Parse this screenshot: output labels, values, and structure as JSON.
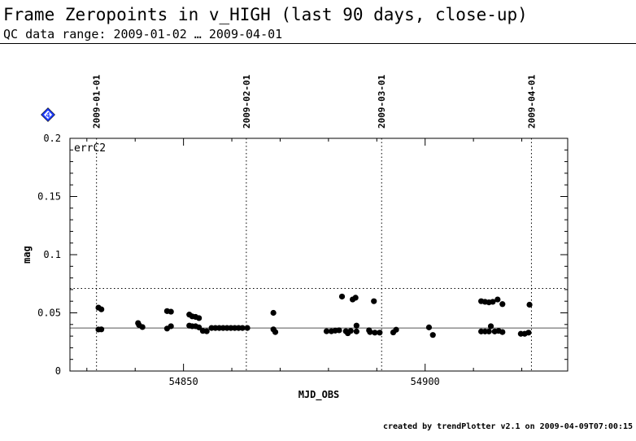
{
  "title": "Frame Zeropoints in v_HIGH (last 90 days, close-up)",
  "subtitle": "QC data range: 2009-01-02 … 2009-04-01",
  "footer": "created by trendPlotter v2.1 on 2009-04-09T07:00:15",
  "marker_icon": "blue-diamond-4",
  "marker_label": "4",
  "chart_data": {
    "type": "scatter",
    "title": "",
    "panel_label": "errC2",
    "xlabel": "MJD_OBS",
    "ylabel": "mag",
    "xlim": [
      54826.5,
      54929.5
    ],
    "ylim": [
      0,
      0.2
    ],
    "x_ticks": [
      54850,
      54900
    ],
    "y_ticks": [
      0,
      0.05,
      0.1,
      0.15,
      0.2
    ],
    "y_tick_labels": [
      "0",
      "0.05",
      "0.1",
      "0.15",
      "0.2"
    ],
    "date_markers": [
      {
        "mjd": 54832,
        "label": "2009-01-01"
      },
      {
        "mjd": 54863,
        "label": "2009-02-01"
      },
      {
        "mjd": 54891,
        "label": "2009-03-01"
      },
      {
        "mjd": 54922,
        "label": "2009-04-01"
      }
    ],
    "reference_line": 0.037,
    "upper_threshold": 0.071,
    "grid": false,
    "colors": {
      "points": "#000000",
      "marker": "#1e3cff"
    },
    "points": [
      [
        54832.4,
        0.0545
      ],
      [
        54833.0,
        0.053
      ],
      [
        54832.4,
        0.0357
      ],
      [
        54833.0,
        0.0358
      ],
      [
        54840.6,
        0.0412
      ],
      [
        54840.8,
        0.0395
      ],
      [
        54841.5,
        0.0378
      ],
      [
        54846.6,
        0.0515
      ],
      [
        54847.4,
        0.051
      ],
      [
        54846.6,
        0.0365
      ],
      [
        54847.4,
        0.0385
      ],
      [
        54851.2,
        0.0485
      ],
      [
        54851.8,
        0.047
      ],
      [
        54852.5,
        0.0465
      ],
      [
        54853.2,
        0.0455
      ],
      [
        54851.2,
        0.039
      ],
      [
        54851.8,
        0.0385
      ],
      [
        54852.5,
        0.0385
      ],
      [
        54853.2,
        0.0375
      ],
      [
        54854.0,
        0.0345
      ],
      [
        54854.8,
        0.0342
      ],
      [
        54855.8,
        0.037
      ],
      [
        54856.6,
        0.037
      ],
      [
        54857.4,
        0.037
      ],
      [
        54858.2,
        0.037
      ],
      [
        54859.0,
        0.037
      ],
      [
        54859.8,
        0.037
      ],
      [
        54860.6,
        0.037
      ],
      [
        54861.4,
        0.037
      ],
      [
        54862.2,
        0.037
      ],
      [
        54863.2,
        0.037
      ],
      [
        54868.6,
        0.05
      ],
      [
        54868.6,
        0.0358
      ],
      [
        54869.0,
        0.0335
      ],
      [
        54879.6,
        0.0342
      ],
      [
        54880.6,
        0.0342
      ],
      [
        54881.4,
        0.0347
      ],
      [
        54882.2,
        0.035
      ],
      [
        54882.8,
        0.064
      ],
      [
        54883.6,
        0.0342
      ],
      [
        54884.0,
        0.0325
      ],
      [
        54884.6,
        0.0345
      ],
      [
        54885.0,
        0.0615
      ],
      [
        54885.6,
        0.063
      ],
      [
        54885.8,
        0.039
      ],
      [
        54885.8,
        0.034
      ],
      [
        54888.4,
        0.035
      ],
      [
        54888.6,
        0.0335
      ],
      [
        54889.4,
        0.06
      ],
      [
        54889.6,
        0.033
      ],
      [
        54890.6,
        0.033
      ],
      [
        54893.4,
        0.0332
      ],
      [
        54894.0,
        0.0355
      ],
      [
        54900.8,
        0.0375
      ],
      [
        54901.6,
        0.031
      ],
      [
        54911.6,
        0.06
      ],
      [
        54912.4,
        0.0595
      ],
      [
        54913.2,
        0.059
      ],
      [
        54914.0,
        0.0595
      ],
      [
        54915.0,
        0.0615
      ],
      [
        54916.0,
        0.0575
      ],
      [
        54911.6,
        0.034
      ],
      [
        54912.4,
        0.034
      ],
      [
        54913.2,
        0.034
      ],
      [
        54913.6,
        0.0385
      ],
      [
        54914.4,
        0.034
      ],
      [
        54915.2,
        0.0345
      ],
      [
        54916.0,
        0.0335
      ],
      [
        54919.8,
        0.032
      ],
      [
        54920.6,
        0.032
      ],
      [
        54921.4,
        0.033
      ],
      [
        54921.6,
        0.057
      ]
    ]
  }
}
